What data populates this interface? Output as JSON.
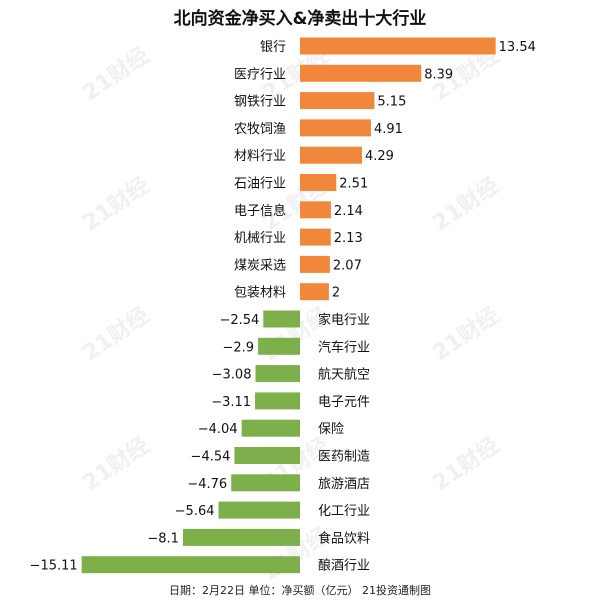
{
  "chart_data": {
    "type": "bar",
    "orientation": "horizontal",
    "title": "北向资金净买入&净卖出十大行业",
    "footer": "日期：2月22日 单位：净买额（亿元） 21投资通制图",
    "watermark": "21财经",
    "colors": {
      "positive": "#F0873A",
      "negative": "#7DB04B",
      "text": "#111111"
    },
    "categories": [
      "银行",
      "医疗行业",
      "钢铁行业",
      "农牧饲渔",
      "材料行业",
      "石油行业",
      "电子信息",
      "机械行业",
      "煤炭采选",
      "包装材料",
      "家电行业",
      "汽车行业",
      "航天航空",
      "电子元件",
      "保险",
      "医药制造",
      "旅游酒店",
      "化工行业",
      "食品饮料",
      "酿酒行业"
    ],
    "values": [
      13.54,
      8.39,
      5.15,
      4.91,
      4.29,
      2.51,
      2.14,
      2.13,
      2.07,
      2,
      -2.54,
      -2.9,
      -3.08,
      -3.11,
      -4.04,
      -4.54,
      -4.76,
      -5.64,
      -8.1,
      -15.11
    ],
    "value_labels": [
      "13.54",
      "8.39",
      "5.15",
      "4.91",
      "4.29",
      "2.51",
      "2.14",
      "2.13",
      "2.07",
      "2",
      "−2.54",
      "−2.9",
      "−3.08",
      "−3.11",
      "−4.04",
      "−4.54",
      "−4.76",
      "−5.64",
      "−8.1",
      "−15.11"
    ]
  }
}
